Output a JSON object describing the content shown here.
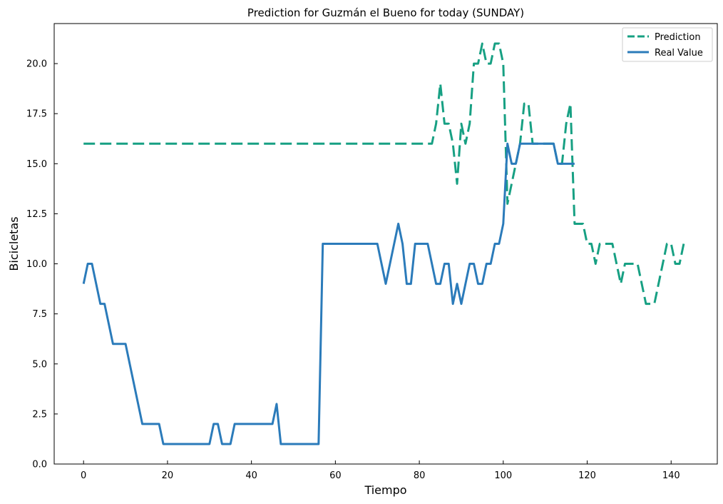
{
  "chart_data": {
    "type": "line",
    "title": "Prediction for Guzmán el Bueno for today (SUNDAY)",
    "xlabel": "Tiempo",
    "ylabel": "Bicicletas",
    "xlim": [
      -7,
      151
    ],
    "ylim": [
      0,
      22
    ],
    "xticks": [
      0,
      20,
      40,
      60,
      80,
      100,
      120,
      140
    ],
    "yticks": [
      0.0,
      2.5,
      5.0,
      7.5,
      10.0,
      12.5,
      15.0,
      17.5,
      20.0
    ],
    "ytick_labels": [
      "0.0",
      "2.5",
      "5.0",
      "7.5",
      "10.0",
      "12.5",
      "15.0",
      "17.5",
      "20.0"
    ],
    "grid": false,
    "legend_position": "top-right",
    "series": [
      {
        "name": "Prediction",
        "color": "#17a083",
        "style": "dashed",
        "x": [
          0,
          83,
          84,
          85,
          86,
          87,
          88,
          89,
          90,
          91,
          92,
          93,
          94,
          95,
          96,
          97,
          98,
          99,
          100,
          101,
          102,
          103,
          104,
          105,
          106,
          107,
          108,
          109,
          110,
          111,
          112,
          113,
          114,
          115,
          116,
          117,
          118,
          119,
          120,
          121,
          122,
          123,
          124,
          125,
          126,
          127,
          128,
          129,
          130,
          131,
          132,
          133,
          134,
          135,
          136,
          137,
          138,
          139,
          140,
          141,
          142,
          143
        ],
        "y": [
          16,
          16,
          17,
          19,
          17,
          17,
          16,
          14,
          17,
          16,
          17,
          20,
          20,
          21,
          20,
          20,
          21,
          21,
          20,
          13,
          14,
          15,
          16,
          18,
          18,
          16,
          16,
          16,
          16,
          16,
          16,
          15,
          15,
          17,
          18,
          12,
          12,
          12,
          11,
          11,
          10,
          11,
          11,
          11,
          11,
          10,
          9,
          10,
          10,
          10,
          10,
          9,
          8,
          8,
          8,
          9,
          10,
          11,
          11,
          10,
          10,
          11
        ]
      },
      {
        "name": "Real Value",
        "color": "#2b7bba",
        "style": "solid",
        "x": [
          0,
          1,
          2,
          3,
          4,
          5,
          6,
          7,
          8,
          9,
          10,
          11,
          12,
          13,
          14,
          15,
          16,
          17,
          18,
          19,
          20,
          21,
          22,
          23,
          24,
          25,
          26,
          27,
          28,
          29,
          30,
          31,
          32,
          33,
          34,
          35,
          36,
          37,
          38,
          39,
          40,
          41,
          42,
          43,
          44,
          45,
          46,
          47,
          48,
          49,
          50,
          51,
          52,
          53,
          54,
          55,
          56,
          57,
          58,
          59,
          60,
          61,
          62,
          63,
          64,
          65,
          66,
          67,
          68,
          69,
          70,
          71,
          72,
          73,
          74,
          75,
          76,
          77,
          78,
          79,
          80,
          81,
          82,
          83,
          84,
          85,
          86,
          87,
          88,
          89,
          90,
          91,
          92,
          93,
          94,
          95,
          96,
          97,
          98,
          99,
          100,
          101,
          102,
          103,
          104,
          105,
          106,
          107,
          108,
          109,
          110,
          111,
          112,
          113,
          114,
          115,
          116,
          117
        ],
        "y": [
          9,
          10,
          10,
          9,
          8,
          8,
          7,
          6,
          6,
          6,
          6,
          5,
          4,
          3,
          2,
          2,
          2,
          2,
          2,
          1,
          1,
          1,
          1,
          1,
          1,
          1,
          1,
          1,
          1,
          1,
          1,
          2,
          2,
          1,
          1,
          1,
          2,
          2,
          2,
          2,
          2,
          2,
          2,
          2,
          2,
          2,
          3,
          1,
          1,
          1,
          1,
          1,
          1,
          1,
          1,
          1,
          1,
          11,
          11,
          11,
          11,
          11,
          11,
          11,
          11,
          11,
          11,
          11,
          11,
          11,
          11,
          10,
          9,
          10,
          11,
          12,
          11,
          9,
          9,
          11,
          11,
          11,
          11,
          10,
          9,
          9,
          10,
          10,
          8,
          9,
          8,
          9,
          10,
          10,
          9,
          9,
          10,
          10,
          11,
          11,
          12,
          16,
          15,
          15,
          16,
          16,
          16,
          16,
          16,
          16,
          16,
          16,
          16,
          15,
          15,
          15,
          15,
          15
        ]
      }
    ]
  }
}
